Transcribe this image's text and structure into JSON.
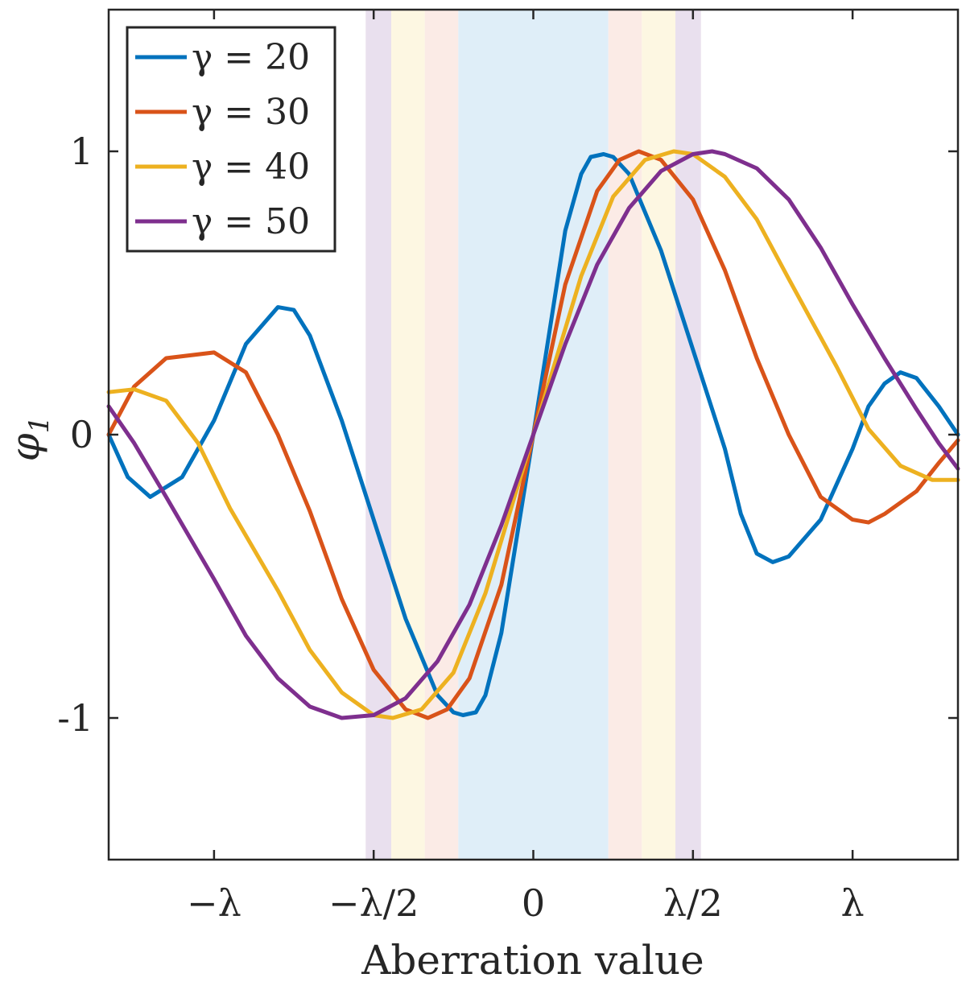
{
  "chart_data": {
    "type": "line",
    "title": "",
    "xlabel": "Aberration value",
    "ylabel": "φ",
    "ylabel_subscript": "1",
    "xlim": [
      -1.33,
      1.33
    ],
    "ylim": [
      -1.5,
      1.5
    ],
    "x_unit": "λ",
    "x_ticks": [
      {
        "value": -1.0,
        "label": "−λ"
      },
      {
        "value": -0.5,
        "label": "−λ/2"
      },
      {
        "value": 0.0,
        "label": "0"
      },
      {
        "value": 0.5,
        "label": "λ/2"
      },
      {
        "value": 1.0,
        "label": "λ"
      }
    ],
    "y_ticks": [
      {
        "value": 1,
        "label": "1"
      },
      {
        "value": 0,
        "label": "0"
      },
      {
        "value": -1,
        "label": "-1"
      }
    ],
    "grid": false,
    "legend_position": "top-left",
    "shaded_bands": [
      {
        "x_from": -0.525,
        "x_to": -0.445,
        "color": "#e9e0ee"
      },
      {
        "x_from": -0.445,
        "x_to": -0.34,
        "color": "#fdf7e2"
      },
      {
        "x_from": -0.34,
        "x_to": -0.235,
        "color": "#fbebe6"
      },
      {
        "x_from": -0.235,
        "x_to": 0.235,
        "color": "#dfeef8"
      },
      {
        "x_from": 0.235,
        "x_to": 0.34,
        "color": "#fbebe6"
      },
      {
        "x_from": 0.34,
        "x_to": 0.445,
        "color": "#fdf7e2"
      },
      {
        "x_from": 0.445,
        "x_to": 0.525,
        "color": "#e9e0ee"
      }
    ],
    "series": [
      {
        "name": "γ = 20",
        "legend_value": "20",
        "color": "#0072BD",
        "points": [
          [
            -1.33,
            0.0
          ],
          [
            -1.27,
            -0.15
          ],
          [
            -1.2,
            -0.22
          ],
          [
            -1.1,
            -0.15
          ],
          [
            -1.0,
            0.05
          ],
          [
            -0.9,
            0.32
          ],
          [
            -0.8,
            0.45
          ],
          [
            -0.75,
            0.44
          ],
          [
            -0.7,
            0.35
          ],
          [
            -0.6,
            0.05
          ],
          [
            -0.5,
            -0.3
          ],
          [
            -0.4,
            -0.65
          ],
          [
            -0.3,
            -0.92
          ],
          [
            -0.25,
            -0.98
          ],
          [
            -0.22,
            -0.99
          ],
          [
            -0.18,
            -0.98
          ],
          [
            -0.15,
            -0.92
          ],
          [
            -0.1,
            -0.7
          ],
          [
            0.0,
            0.0
          ],
          [
            0.1,
            0.72
          ],
          [
            0.15,
            0.92
          ],
          [
            0.18,
            0.98
          ],
          [
            0.22,
            0.99
          ],
          [
            0.25,
            0.98
          ],
          [
            0.3,
            0.92
          ],
          [
            0.4,
            0.65
          ],
          [
            0.5,
            0.3
          ],
          [
            0.6,
            -0.05
          ],
          [
            0.65,
            -0.28
          ],
          [
            0.7,
            -0.42
          ],
          [
            0.75,
            -0.45
          ],
          [
            0.8,
            -0.43
          ],
          [
            0.9,
            -0.3
          ],
          [
            1.0,
            -0.05
          ],
          [
            1.05,
            0.1
          ],
          [
            1.1,
            0.18
          ],
          [
            1.15,
            0.22
          ],
          [
            1.2,
            0.2
          ],
          [
            1.27,
            0.1
          ],
          [
            1.33,
            0.0
          ]
        ]
      },
      {
        "name": "γ = 30",
        "legend_value": "30",
        "color": "#D95319",
        "points": [
          [
            -1.33,
            0.0
          ],
          [
            -1.25,
            0.17
          ],
          [
            -1.15,
            0.27
          ],
          [
            -1.0,
            0.29
          ],
          [
            -0.9,
            0.22
          ],
          [
            -0.8,
            0.0
          ],
          [
            -0.7,
            -0.27
          ],
          [
            -0.6,
            -0.58
          ],
          [
            -0.5,
            -0.83
          ],
          [
            -0.4,
            -0.97
          ],
          [
            -0.33,
            -1.0
          ],
          [
            -0.27,
            -0.97
          ],
          [
            -0.2,
            -0.86
          ],
          [
            -0.1,
            -0.53
          ],
          [
            0.0,
            0.0
          ],
          [
            0.1,
            0.53
          ],
          [
            0.2,
            0.86
          ],
          [
            0.27,
            0.97
          ],
          [
            0.33,
            1.0
          ],
          [
            0.4,
            0.97
          ],
          [
            0.5,
            0.83
          ],
          [
            0.6,
            0.58
          ],
          [
            0.7,
            0.27
          ],
          [
            0.8,
            0.0
          ],
          [
            0.9,
            -0.22
          ],
          [
            1.0,
            -0.3
          ],
          [
            1.05,
            -0.31
          ],
          [
            1.1,
            -0.28
          ],
          [
            1.2,
            -0.2
          ],
          [
            1.27,
            -0.1
          ],
          [
            1.33,
            -0.02
          ]
        ]
      },
      {
        "name": "γ = 40",
        "legend_value": "40",
        "color": "#EDB120",
        "points": [
          [
            -1.33,
            0.15
          ],
          [
            -1.25,
            0.16
          ],
          [
            -1.15,
            0.12
          ],
          [
            -1.05,
            -0.03
          ],
          [
            -0.95,
            -0.26
          ],
          [
            -0.8,
            -0.55
          ],
          [
            -0.7,
            -0.76
          ],
          [
            -0.6,
            -0.91
          ],
          [
            -0.5,
            -0.99
          ],
          [
            -0.44,
            -1.0
          ],
          [
            -0.35,
            -0.97
          ],
          [
            -0.25,
            -0.84
          ],
          [
            -0.15,
            -0.56
          ],
          [
            0.0,
            0.0
          ],
          [
            0.15,
            0.56
          ],
          [
            0.25,
            0.84
          ],
          [
            0.35,
            0.97
          ],
          [
            0.44,
            1.0
          ],
          [
            0.5,
            0.99
          ],
          [
            0.6,
            0.91
          ],
          [
            0.7,
            0.76
          ],
          [
            0.8,
            0.55
          ],
          [
            0.95,
            0.24
          ],
          [
            1.05,
            0.02
          ],
          [
            1.15,
            -0.11
          ],
          [
            1.25,
            -0.16
          ],
          [
            1.33,
            -0.16
          ]
        ]
      },
      {
        "name": "γ = 50",
        "legend_value": "50",
        "color": "#7E2F8E",
        "points": [
          [
            -1.33,
            0.1
          ],
          [
            -1.25,
            -0.03
          ],
          [
            -1.15,
            -0.22
          ],
          [
            -1.0,
            -0.51
          ],
          [
            -0.9,
            -0.71
          ],
          [
            -0.8,
            -0.86
          ],
          [
            -0.7,
            -0.96
          ],
          [
            -0.6,
            -1.0
          ],
          [
            -0.5,
            -0.99
          ],
          [
            -0.4,
            -0.93
          ],
          [
            -0.3,
            -0.8
          ],
          [
            -0.2,
            -0.6
          ],
          [
            -0.1,
            -0.32
          ],
          [
            0.0,
            0.0
          ],
          [
            0.1,
            0.32
          ],
          [
            0.2,
            0.6
          ],
          [
            0.3,
            0.8
          ],
          [
            0.4,
            0.93
          ],
          [
            0.5,
            0.99
          ],
          [
            0.56,
            1.0
          ],
          [
            0.6,
            0.99
          ],
          [
            0.7,
            0.94
          ],
          [
            0.8,
            0.83
          ],
          [
            0.9,
            0.66
          ],
          [
            1.0,
            0.46
          ],
          [
            1.1,
            0.27
          ],
          [
            1.2,
            0.09
          ],
          [
            1.27,
            -0.03
          ],
          [
            1.33,
            -0.12
          ]
        ]
      }
    ]
  }
}
